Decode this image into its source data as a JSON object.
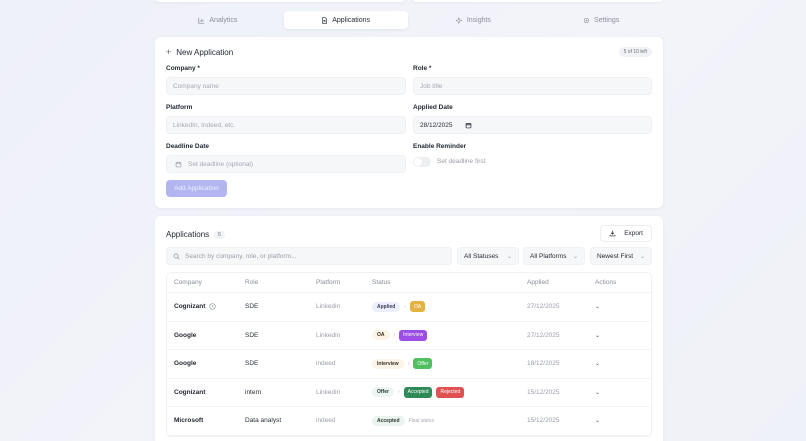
{
  "tabs": [
    {
      "label": "Analytics",
      "icon": "bar-chart-icon",
      "active": false
    },
    {
      "label": "Applications",
      "icon": "document-icon",
      "active": true
    },
    {
      "label": "Insights",
      "icon": "sparkles-icon",
      "active": false
    },
    {
      "label": "Settings",
      "icon": "gear-icon",
      "active": false
    }
  ],
  "form": {
    "title": "New Application",
    "quota": "5 of 10 left",
    "company_label": "Company *",
    "company_placeholder": "Company name",
    "role_label": "Role *",
    "role_placeholder": "Job title",
    "platform_label": "Platform",
    "platform_placeholder": "LinkedIn, Indeed, etc.",
    "applied_date_label": "Applied Date",
    "applied_date_value": "28/12/2025",
    "deadline_label": "Deadline Date",
    "deadline_placeholder": "Set deadline (optional)",
    "reminder_label": "Enable Reminder",
    "reminder_hint": "Set deadline first",
    "submit_label": "Add Application"
  },
  "list": {
    "title": "Applications",
    "count": "5",
    "export_label": "Export",
    "search_placeholder": "Search by company, role, or platform...",
    "status_filter": "All Statuses",
    "platform_filter": "All Platforms",
    "sort": "Newest First",
    "columns": [
      "Company",
      "Role",
      "Platform",
      "Status",
      "Applied",
      "Actions"
    ],
    "rows": [
      {
        "company": "Cognizant",
        "has_clock": true,
        "role": "SDE",
        "platform": "Linkedin",
        "status": "Applied",
        "next": [
          "OA"
        ],
        "applied": "27/12/2025"
      },
      {
        "company": "Google",
        "has_clock": false,
        "role": "SDE",
        "platform": "Linkedin",
        "status": "OA",
        "next": [
          "Interview"
        ],
        "applied": "27/12/2025"
      },
      {
        "company": "Google",
        "has_clock": false,
        "role": "SDE",
        "platform": "indeed",
        "status": "Interview",
        "next": [
          "Offer"
        ],
        "applied": "18/12/2025"
      },
      {
        "company": "Cognizant",
        "has_clock": false,
        "role": "intern",
        "platform": "Linkedin",
        "status": "Offer",
        "next": [
          "Accepted",
          "Rejected"
        ],
        "applied": "15/12/2025"
      },
      {
        "company": "Microsoft",
        "has_clock": false,
        "role": "Data analyst",
        "platform": "indeed",
        "status": "Accepted",
        "next": [],
        "final_note": "Final status",
        "applied": "15/12/2025"
      }
    ]
  },
  "colors": {
    "accent": "#b3b5f1",
    "status_soft": {
      "Applied": {
        "bg": "#eceefb",
        "fg": "#3a3f5a"
      },
      "OA": {
        "bg": "#fdf3e6",
        "fg": "#3a3020"
      },
      "Interview": {
        "bg": "#fdf3e6",
        "fg": "#3a3020"
      },
      "Offer": {
        "bg": "#ebf5f1",
        "fg": "#2a3a32"
      },
      "Accepted": {
        "bg": "#eaf3ee",
        "fg": "#2a3a32"
      }
    },
    "status_solid": {
      "OA": "#e3b341",
      "Interview": "#9b4de6",
      "Offer": "#4fbf5f",
      "Accepted": "#2e8b57",
      "Rejected": "#e05252"
    }
  }
}
